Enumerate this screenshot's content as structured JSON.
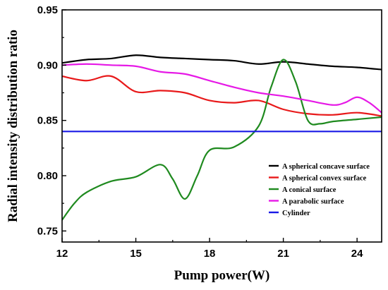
{
  "chart_data": {
    "type": "line",
    "title": "",
    "xlabel": "Pump power(W)",
    "ylabel": "Radial intensity distribution ratio",
    "xlim": [
      12,
      25
    ],
    "ylim": [
      0.74,
      0.95
    ],
    "xticks": [
      12,
      15,
      18,
      21,
      24
    ],
    "yticks": [
      0.75,
      0.8,
      0.85,
      0.9,
      0.95
    ],
    "xtick_labels": [
      "12",
      "15",
      "18",
      "21",
      "24"
    ],
    "ytick_labels": [
      "0.75",
      "0.80",
      "0.85",
      "0.90",
      "0.95"
    ],
    "grid": false,
    "legend_position": "bottom-right",
    "series": [
      {
        "name": "A spherical concave surface",
        "color": "#000000",
        "x": [
          12,
          13,
          14,
          15,
          16,
          17,
          18,
          19,
          20,
          21,
          22,
          23,
          24,
          25
        ],
        "y": [
          0.902,
          0.905,
          0.906,
          0.909,
          0.907,
          0.906,
          0.905,
          0.904,
          0.901,
          0.903,
          0.901,
          0.899,
          0.898,
          0.896
        ]
      },
      {
        "name": "A spherical convex surface",
        "color": "#e8191a",
        "x": [
          12,
          13,
          14,
          15,
          16,
          17,
          18,
          19,
          20,
          21,
          22,
          23,
          24,
          25
        ],
        "y": [
          0.89,
          0.886,
          0.89,
          0.876,
          0.877,
          0.875,
          0.868,
          0.866,
          0.868,
          0.86,
          0.856,
          0.855,
          0.857,
          0.854
        ]
      },
      {
        "name": "A conical surface",
        "color": "#1f8a1f",
        "x": [
          12,
          12.5,
          13,
          14,
          15,
          16,
          16.5,
          17,
          17.5,
          18,
          19,
          20,
          20.5,
          21,
          21.5,
          22,
          22.5,
          23,
          24,
          25
        ],
        "y": [
          0.76,
          0.775,
          0.785,
          0.795,
          0.799,
          0.81,
          0.797,
          0.779,
          0.8,
          0.823,
          0.826,
          0.845,
          0.88,
          0.905,
          0.885,
          0.85,
          0.847,
          0.849,
          0.851,
          0.853
        ]
      },
      {
        "name": "A parabolic surface",
        "color": "#e619e6",
        "x": [
          12,
          13,
          14,
          15,
          16,
          17,
          18,
          19,
          20,
          21,
          22,
          23,
          23.5,
          24,
          24.5,
          25
        ],
        "y": [
          0.9,
          0.901,
          0.9,
          0.899,
          0.894,
          0.892,
          0.886,
          0.88,
          0.875,
          0.872,
          0.868,
          0.864,
          0.866,
          0.871,
          0.866,
          0.857
        ]
      },
      {
        "name": "Cylinder",
        "color": "#1a1ae6",
        "x": [
          12,
          25
        ],
        "y": [
          0.84,
          0.84
        ]
      }
    ]
  }
}
